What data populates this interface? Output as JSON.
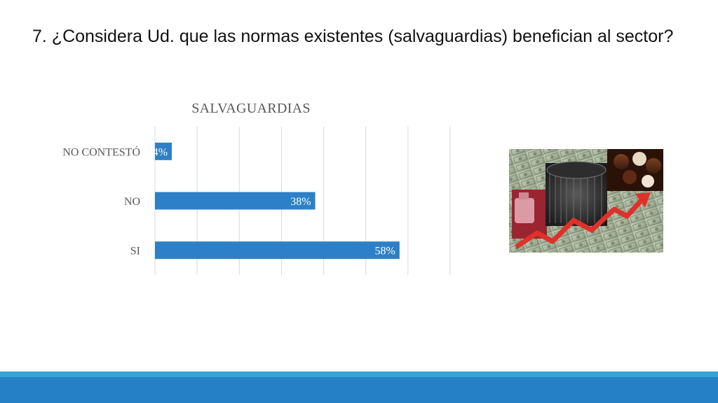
{
  "slide": {
    "title": "7. ¿Considera Ud. que las normas existentes (salvaguardias) benefician al sector?"
  },
  "chart_data": {
    "type": "bar",
    "orientation": "horizontal",
    "title": "SALVAGUARDIAS",
    "categories": [
      "NO CONTESTÓ",
      "NO",
      "SI"
    ],
    "values": [
      4,
      38,
      58
    ],
    "data_labels": [
      "4%",
      "38%",
      "58%"
    ],
    "unit": "%",
    "xlim": [
      0,
      70
    ],
    "grid": true,
    "legend": "none",
    "bar_color": "#2e80c6",
    "grid_color": "#d9d9d9"
  },
  "photo": {
    "description_icon": "collage-image"
  },
  "colors": {
    "footer_accent": "#35a3d6",
    "footer_main": "#2581c4"
  }
}
